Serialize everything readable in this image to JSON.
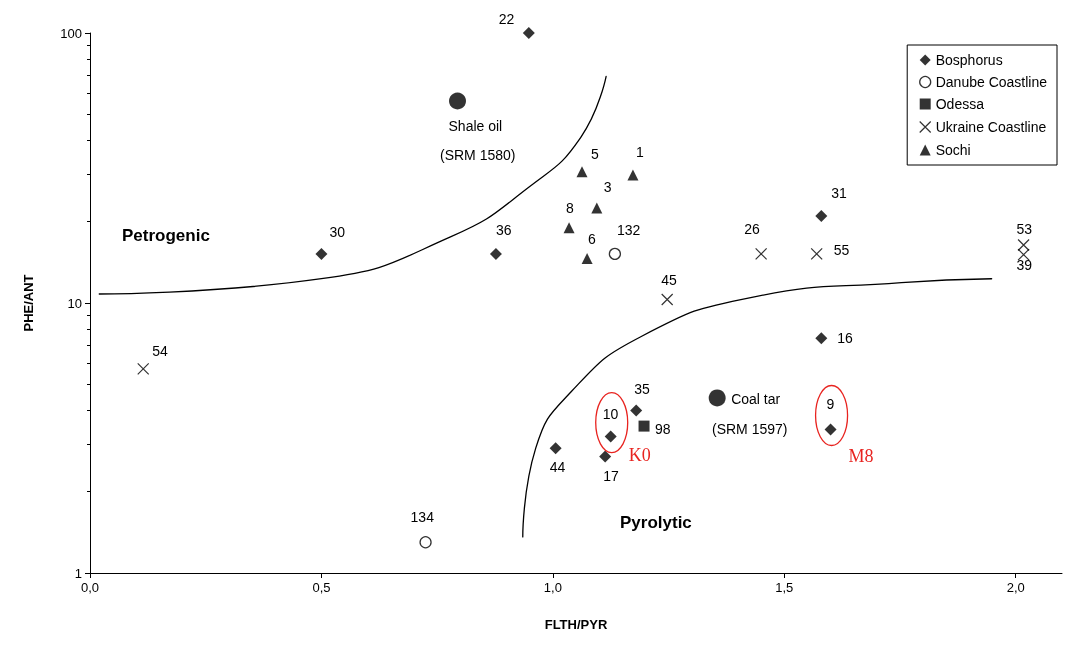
{
  "chart_data": {
    "type": "scatter",
    "xlabel": "FLTH/PYR",
    "ylabel": "PHE/ANT",
    "log": "y",
    "grid": false,
    "legend": "top right",
    "xlim": [
      0,
      2.1
    ],
    "xticks": [
      {
        "value": 0,
        "label": "0,0"
      },
      {
        "value": 0.5,
        "label": "0,5"
      },
      {
        "value": 1,
        "label": "1,0"
      },
      {
        "value": 1.5,
        "label": "1,5"
      },
      {
        "value": 2,
        "label": "2,0"
      }
    ],
    "ylim": [
      1,
      100
    ],
    "yticks": [
      1,
      10,
      100
    ],
    "series": [
      {
        "name": "Bosphorus",
        "color": "#000000",
        "marker": "diamond",
        "x": [
          0.948,
          0.5,
          0.877,
          1.58,
          1.58,
          1.18,
          1.125,
          1.113,
          1.006,
          1.6
        ],
        "values": [
          100,
          15.2,
          15.2,
          21,
          7.4,
          4,
          3.2,
          2.7,
          2.9,
          3.4
        ]
      },
      {
        "name": "Danube Coastline",
        "color": "#000000",
        "marker": "circle",
        "x": [
          1.134,
          0.725
        ],
        "values": [
          15.2,
          1.3
        ]
      },
      {
        "name": "Odessa",
        "color": "#000000",
        "marker": "square",
        "x": [
          1.197
        ],
        "values": [
          3.5
        ]
      },
      {
        "name": "Ukraine Coastline",
        "color": "#000000",
        "marker": "cross",
        "x": [
          0.115,
          1.247,
          1.45,
          1.57,
          2.017,
          2.017
        ],
        "values": [
          5.7,
          10.3,
          15.2,
          15.2,
          16.4,
          15.1
        ]
      },
      {
        "name": "Sochi",
        "color": "#000000",
        "marker": "triangle",
        "x": [
          1.063,
          1.173,
          1.095,
          1.035,
          1.074
        ],
        "values": [
          30.6,
          29.8,
          22.5,
          19,
          14.6
        ]
      },
      {
        "color": "#000000",
        "marker": "circle",
        "x": [
          0.794,
          1.355
        ],
        "values": [
          56,
          4.45
        ]
      },
      {
        "type": "line",
        "color": "#000000",
        "marker": "none",
        "x": [
          0.02,
          0.5,
          0.78,
          0.95,
          1.06,
          1.115
        ],
        "values": [
          10.8,
          12.3,
          17.6,
          27,
          41,
          69
        ]
      },
      {
        "type": "line",
        "color": "#000000",
        "marker": "none",
        "x": [
          0.935,
          0.963,
          1.04,
          1.19,
          1.43,
          1.753,
          1.948
        ],
        "values": [
          1.36,
          2.9,
          4.7,
          7.5,
          10.5,
          11.9,
          12.3
        ]
      }
    ],
    "annotations": [
      "Petrogenic",
      "Pyrolytic",
      {
        "text": "Shale oil",
        "x": 0.794,
        "y": 56
      },
      "(SRM 1580)",
      {
        "text": "Coal tar",
        "x": 1.355,
        "y": 4.45
      },
      "(SRM 1597)",
      {
        "text": "K0",
        "x": 1.125,
        "y": 3.2
      },
      {
        "text": "M8",
        "x": 1.6,
        "y": 3.4
      },
      {
        "text": "22",
        "x": 0.948,
        "y": 100
      },
      {
        "text": "30",
        "x": 0.5,
        "y": 15.2
      },
      {
        "text": "36",
        "x": 0.877,
        "y": 15.2
      },
      {
        "text": "31",
        "x": 1.58,
        "y": 21
      },
      {
        "text": "16",
        "x": 1.58,
        "y": 7.4
      },
      {
        "text": "35",
        "x": 1.18,
        "y": 4
      },
      {
        "text": "10",
        "x": 1.125,
        "y": 3.2
      },
      {
        "text": "17",
        "x": 1.113,
        "y": 2.7
      },
      {
        "text": "44",
        "x": 1.006,
        "y": 2.9
      },
      {
        "text": "9",
        "x": 1.6,
        "y": 3.4
      },
      {
        "text": "132",
        "x": 1.134,
        "y": 15.2
      },
      {
        "text": "134",
        "x": 0.725,
        "y": 1.3
      },
      {
        "text": "98",
        "x": 1.197,
        "y": 3.5
      },
      {
        "text": "54",
        "x": 0.115,
        "y": 5.7
      },
      {
        "text": "45",
        "x": 1.247,
        "y": 10.3
      },
      {
        "text": "26",
        "x": 1.45,
        "y": 15.2
      },
      {
        "text": "55",
        "x": 1.57,
        "y": 15.2
      },
      {
        "text": "53",
        "x": 2.017,
        "y": 16.4
      },
      {
        "text": "39",
        "x": 2.017,
        "y": 15.1
      },
      {
        "text": "5",
        "x": 1.063,
        "y": 30.6
      },
      {
        "text": "1",
        "x": 1.173,
        "y": 29.8
      },
      {
        "text": "3",
        "x": 1.095,
        "y": 22.5
      },
      {
        "text": "8",
        "x": 1.035,
        "y": 19
      },
      {
        "text": "6",
        "x": 1.074,
        "y": 14.6
      }
    ]
  }
}
